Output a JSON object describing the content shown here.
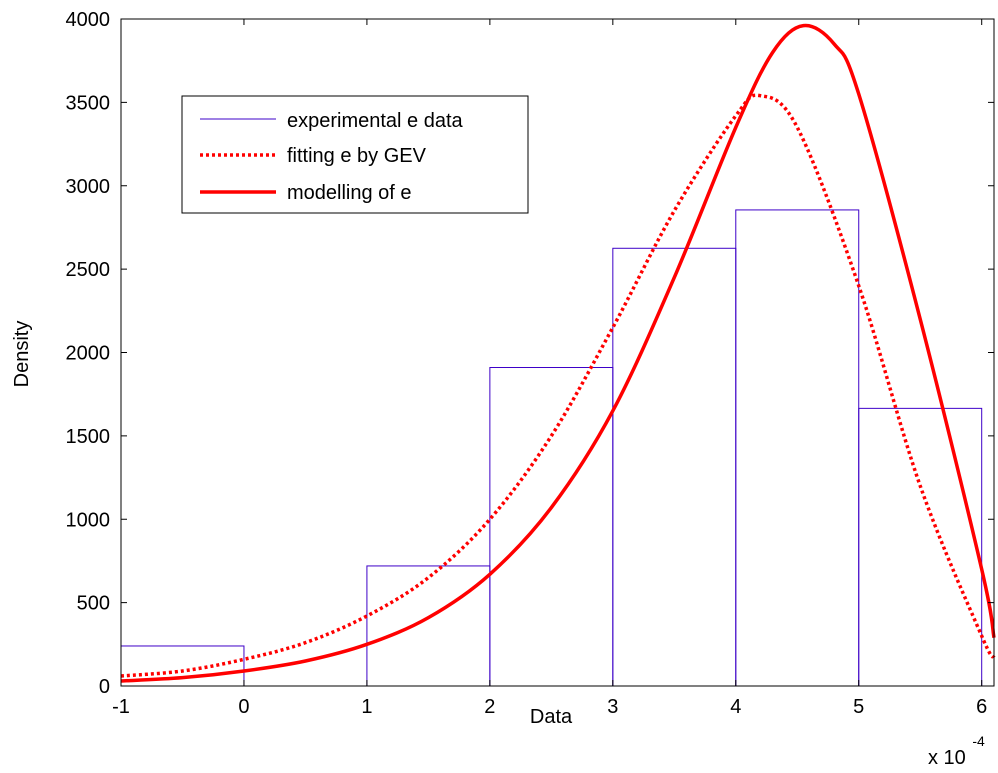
{
  "chart_data": {
    "type": "line",
    "xlabel": "Data",
    "ylabel": "Density",
    "x_multiplier_label": "x 10",
    "x_multiplier_exponent": "-4",
    "xlim": [
      -1,
      6.1
    ],
    "ylim": [
      0,
      4000
    ],
    "x_ticks": [
      -1,
      0,
      1,
      2,
      3,
      4,
      5,
      6
    ],
    "y_ticks": [
      0,
      500,
      1000,
      1500,
      2000,
      2500,
      3000,
      3500,
      4000
    ],
    "grid": false,
    "legend_position": "top-left",
    "histogram": {
      "name": "experimental e data",
      "color": "#3d00c8",
      "bin_edges": [
        -1,
        0,
        1,
        2,
        3,
        4,
        5,
        6
      ],
      "values": [
        240,
        0,
        720,
        1910,
        2625,
        2855,
        1665
      ]
    },
    "series": [
      {
        "name": "fitting e by GEV",
        "style": "dotted",
        "color": "#ff0000",
        "x": [
          -1,
          -0.5,
          0,
          0.5,
          1,
          1.5,
          2,
          2.5,
          3,
          3.5,
          4,
          4.2,
          4.5,
          5,
          5.5,
          6,
          6.1
        ],
        "y": [
          60,
          90,
          160,
          260,
          420,
          650,
          1000,
          1500,
          2150,
          2850,
          3420,
          3540,
          3350,
          2400,
          1200,
          300,
          170
        ]
      },
      {
        "name": "modelling of e",
        "style": "solid",
        "color": "#ff0000",
        "x": [
          -1,
          -0.5,
          0,
          0.5,
          1,
          1.5,
          2,
          2.5,
          3,
          3.5,
          4,
          4.3,
          4.55,
          4.8,
          5,
          5.5,
          6,
          6.1
        ],
        "y": [
          30,
          50,
          90,
          150,
          250,
          410,
          670,
          1070,
          1650,
          2450,
          3350,
          3800,
          3960,
          3850,
          3550,
          2200,
          700,
          290
        ]
      }
    ]
  }
}
